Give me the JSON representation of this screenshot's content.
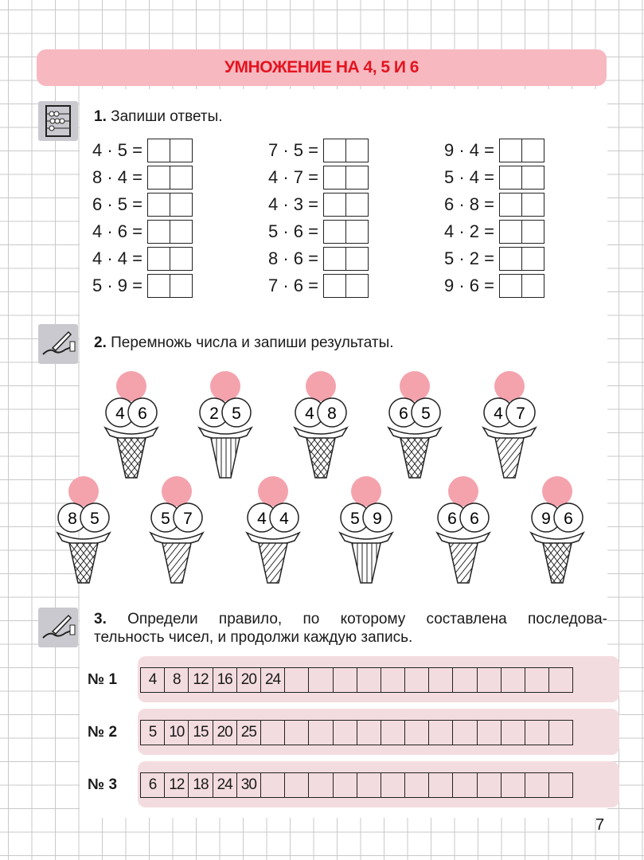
{
  "title": "УМНОЖЕНИЕ НА 4, 5 И 6",
  "task1": {
    "number": "1.",
    "text": "Запиши ответы.",
    "icon": "abacus-icon",
    "columns": [
      [
        "4 · 5 =",
        "8 · 4 =",
        "6 · 5 =",
        "4 · 6 =",
        "4 · 4 =",
        "5 · 9 ="
      ],
      [
        "7 · 5 =",
        "4 · 7 =",
        "4 · 3 =",
        "5 · 6 =",
        "8 · 6 =",
        "7 · 6 ="
      ],
      [
        "9 · 4 =",
        "5 · 4 =",
        "6 · 8 =",
        "4 · 2 =",
        "5 · 2 =",
        "9 · 6 ="
      ]
    ]
  },
  "task2": {
    "number": "2.",
    "text": "Перемножь числа и запиши результаты.",
    "icon": "writing-hand-icon",
    "ice_creams": [
      [
        "4",
        "6"
      ],
      [
        "2",
        "5"
      ],
      [
        "4",
        "8"
      ],
      [
        "6",
        "5"
      ],
      [
        "4",
        "7"
      ],
      [
        "8",
        "5"
      ],
      [
        "5",
        "7"
      ],
      [
        "4",
        "4"
      ],
      [
        "5",
        "9"
      ],
      [
        "6",
        "6"
      ],
      [
        "9",
        "6"
      ]
    ],
    "colors": {
      "scoop": "#f4a3ad"
    }
  },
  "task3": {
    "number": "3.",
    "text_line1": "Определи правило, по которому составлена последова-",
    "text_line2": "тельность чисел, и продолжи каждую запись.",
    "icon": "writing-hand-icon",
    "sequences": [
      {
        "label": "№ 1",
        "values": [
          "4",
          "8",
          "12",
          "16",
          "20",
          "24"
        ]
      },
      {
        "label": "№ 2",
        "values": [
          "5",
          "10",
          "15",
          "20",
          "25"
        ]
      },
      {
        "label": "№ 3",
        "values": [
          "6",
          "12",
          "18",
          "24",
          "30"
        ]
      }
    ],
    "cell_count": 18
  },
  "page_number": "7",
  "colors": {
    "banner": "#f7b8c0",
    "title": "#e3141f"
  }
}
